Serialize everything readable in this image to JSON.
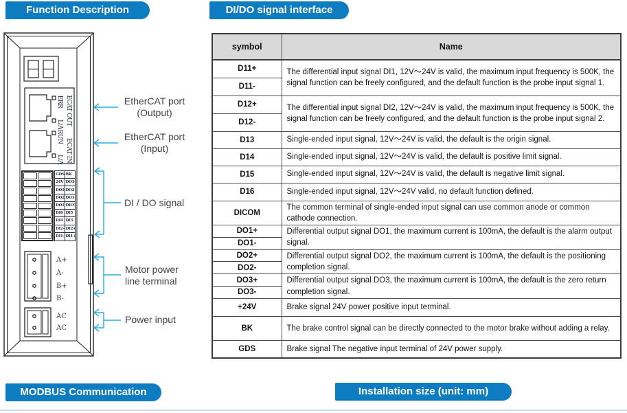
{
  "banners": {
    "function_description": "Function Description",
    "dido_signal_interface": "DI/DO signal interface",
    "modbus_communication": "MODBUS Communication",
    "installation_size": "Installation size (unit: mm)"
  },
  "device": {
    "ports": {
      "out": {
        "led1": "ERR",
        "led2": "L/A",
        "name": "ECAT OUT"
      },
      "in": {
        "led1": "RUN",
        "led2": "L/A",
        "name": "ECAT IN"
      }
    },
    "io_terminal_labels": [
      [
        "GDS",
        "BK"
      ],
      [
        "24V",
        "DO3-"
      ],
      [
        "DO3+",
        "DO2-"
      ],
      [
        "DO2+",
        "DO1-"
      ],
      [
        "DO1+",
        "DICOM"
      ],
      [
        "DI6",
        "DI5"
      ],
      [
        "DI4",
        "DI3"
      ],
      [
        "DI2-",
        "DI2+"
      ],
      [
        "DI1-",
        "DI1+"
      ]
    ],
    "motor_terminals": [
      "A+",
      "A-",
      "B+",
      "B-"
    ],
    "power_terminals": [
      "AC",
      "AC"
    ]
  },
  "callouts": [
    {
      "line1": "EtherCAT port",
      "line2": "(Output)"
    },
    {
      "line1": "EtherCAT port",
      "line2": "(Input)"
    },
    {
      "line1": "DI / DO signal",
      "line2": ""
    },
    {
      "line1": "Motor power",
      "line2": "line terminal"
    },
    {
      "line1": "Power input",
      "line2": ""
    }
  ],
  "table": {
    "headers": [
      "symbol",
      "Name"
    ],
    "groups": [
      {
        "symbols": [
          "D11+",
          "D11-"
        ],
        "desc": "The differential input signal DI1, 12V～24V is valid, the maximum input frequency is 500K, the signal function can be freely configured, and the default function is the probe input signal 1."
      },
      {
        "symbols": [
          "D12+",
          "D12-"
        ],
        "desc": "The differential input signal DI2, 12V～24V is valid, the maximum input frequency is 500K, the signal function can be freely configured, and the default function is the probe input signal 2."
      },
      {
        "symbols": [
          "D13"
        ],
        "desc": "Single-ended input signal, 12V～24V is valid, the default is the origin signal."
      },
      {
        "symbols": [
          "D14"
        ],
        "desc": "Single-ended input signal, 12V～24V is valid, the default is positive limit signal."
      },
      {
        "symbols": [
          "D15"
        ],
        "desc": "Single-ended input signal, 12V～24V is valid, the default is negative limit signal."
      },
      {
        "symbols": [
          "D16"
        ],
        "desc": "Single-ended input signal, 12V～24V valid, no default function defined."
      },
      {
        "symbols": [
          "DICOM"
        ],
        "desc": "The common terminal of single-ended input signal can use common anode or common cathode connection."
      },
      {
        "symbols": [
          "DO1+",
          "DO1-"
        ],
        "desc": "Differential output signal DO1, the maximum current is 100mA, the default is the alarm output signal."
      },
      {
        "symbols": [
          "DO2+",
          "DO2-"
        ],
        "desc": "Differential output signal DO2, the maximum current is 100mA, the default is the positioning completion signal."
      },
      {
        "symbols": [
          "DO3+",
          "DO3-"
        ],
        "desc": "Differential output signal DO3, the maximum current is 100mA, the default is the zero return completion signal."
      },
      {
        "symbols": [
          "+24V"
        ],
        "desc": "Brake signal 24V power positive input terminal."
      },
      {
        "symbols": [
          "BK"
        ],
        "desc": "The brake control signal can be directly connected to the motor brake without adding a relay."
      },
      {
        "symbols": [
          "GDS"
        ],
        "desc": "Brake signal The negative input terminal of 24V power supply."
      }
    ]
  },
  "colors": {
    "banner_blue": "#0e7cc1",
    "callout_cyan": "#29abe2",
    "table_header_gray": "#d9d9d9"
  }
}
